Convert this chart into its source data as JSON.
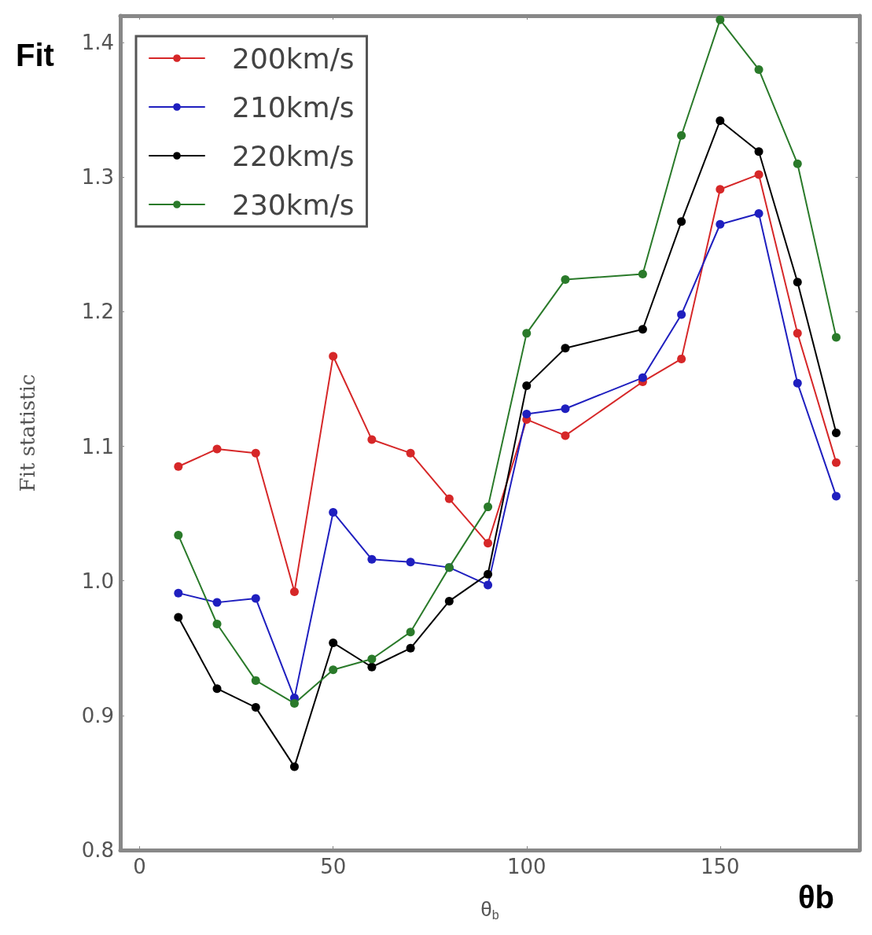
{
  "chart_data": {
    "type": "line",
    "xlabel": "θ$_{b}$",
    "ylabel": "Fit statistic",
    "annotations": [
      "Fit",
      "θb"
    ],
    "x": [
      10,
      20,
      30,
      40,
      50,
      60,
      70,
      80,
      90,
      100,
      110,
      130,
      140,
      150,
      160,
      170,
      180
    ],
    "xlim": [
      -5,
      186
    ],
    "xticks": [
      0,
      50,
      100,
      150
    ],
    "ylim": [
      0.8,
      1.42
    ],
    "yticks": [
      0.8,
      0.9,
      {
        "value": 1,
        "label": "1.0"
      },
      1.1,
      1.2,
      1.3,
      1.4
    ],
    "series": [
      {
        "name": "200km/s",
        "color": "#d62728",
        "values": [
          1.085,
          1.098,
          1.095,
          0.992,
          1.167,
          1.105,
          1.095,
          1.061,
          1.028,
          1.12,
          1.108,
          1.148,
          1.165,
          1.291,
          1.302,
          1.184,
          1.088
        ]
      },
      {
        "name": "210km/s",
        "color": "#1f1fbf",
        "values": [
          0.991,
          0.984,
          0.987,
          0.913,
          1.051,
          1.016,
          1.014,
          1.01,
          0.997,
          1.124,
          1.128,
          1.151,
          1.198,
          1.265,
          1.273,
          1.147,
          1.063
        ]
      },
      {
        "name": "220km/s",
        "color": "#000000",
        "values": [
          0.973,
          0.92,
          0.906,
          0.862,
          0.954,
          0.936,
          0.95,
          0.985,
          1.005,
          1.145,
          1.173,
          1.187,
          1.267,
          1.342,
          1.319,
          1.222,
          1.11
        ]
      },
      {
        "name": "230km/s",
        "color": "#2a7a2a",
        "values": [
          1.034,
          0.968,
          0.926,
          0.909,
          0.934,
          0.942,
          0.962,
          1.01,
          1.055,
          1.184,
          1.224,
          1.228,
          1.331,
          1.417,
          1.38,
          1.31,
          1.181
        ]
      }
    ],
    "legend": "top left",
    "grid": false,
    "marker": "circle",
    "line_style": "solid"
  }
}
